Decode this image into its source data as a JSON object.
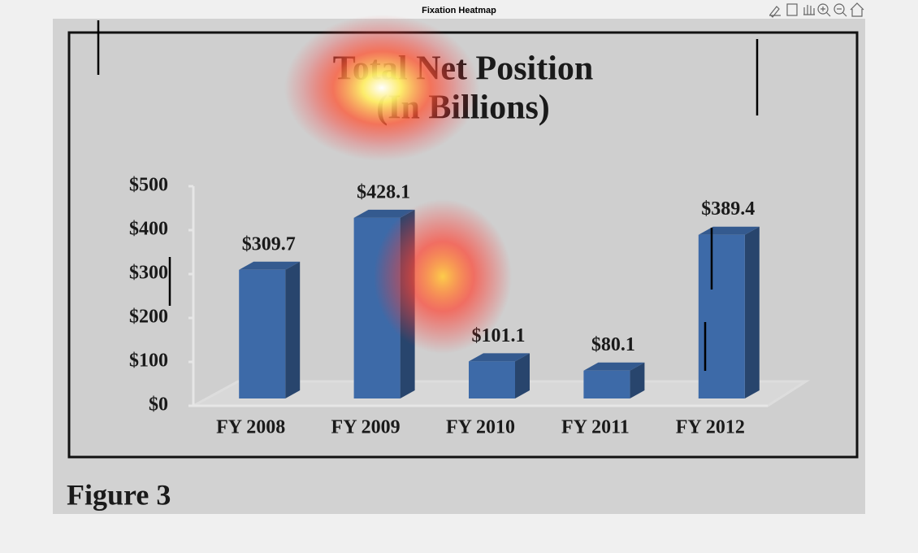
{
  "window": {
    "title": "Fixation Heatmap"
  },
  "chart_data": {
    "type": "bar",
    "title": "Total Net Position",
    "subtitle": "(In Billions)",
    "categories": [
      "FY 2008",
      "FY 2009",
      "FY 2010",
      "FY 2011",
      "FY 2012"
    ],
    "values": [
      309.7,
      428.1,
      101.1,
      80.1,
      389.4
    ],
    "value_labels": [
      "$309.7",
      "$428.1",
      "$101.1",
      "$80.1",
      "$389.4"
    ],
    "color": "#3d6aa8",
    "ylim": [
      0,
      500
    ],
    "yticks": [
      {
        "value": 0,
        "label": "$0"
      },
      {
        "value": 100,
        "label": "$100"
      },
      {
        "value": 200,
        "label": "$200"
      },
      {
        "value": 300,
        "label": "$300"
      },
      {
        "value": 400,
        "label": "$400"
      },
      {
        "value": 500,
        "label": "$500"
      }
    ],
    "caption": "Figure 3"
  }
}
